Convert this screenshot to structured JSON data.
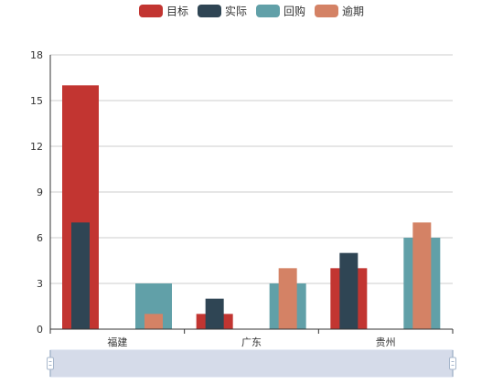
{
  "chart_data": {
    "type": "bar",
    "title": "",
    "xlabel": "",
    "ylabel": "",
    "categories": [
      "福建",
      "广东",
      "贵州"
    ],
    "ylim": [
      0,
      18
    ],
    "yticks": [
      0,
      3,
      6,
      9,
      12,
      15,
      18
    ],
    "grid": true,
    "legend_position": "top-center",
    "series": [
      {
        "name": "目标",
        "color": "#c23531",
        "stack_group": "a",
        "values": [
          16,
          1,
          4
        ]
      },
      {
        "name": "实际",
        "color": "#2f4554",
        "stack_group": "a",
        "values": [
          7,
          2,
          5
        ]
      },
      {
        "name": "回购",
        "color": "#61a0a8",
        "stack_group": "b",
        "values": [
          3,
          3,
          6
        ]
      },
      {
        "name": "逾期",
        "color": "#d48265",
        "stack_group": "b",
        "values": [
          1,
          4,
          7
        ]
      }
    ]
  },
  "datazoom": {
    "fill_color": "#d5dbe9",
    "border_color": "#a7b7cc",
    "range_start_percent": 0,
    "range_end_percent": 100
  }
}
